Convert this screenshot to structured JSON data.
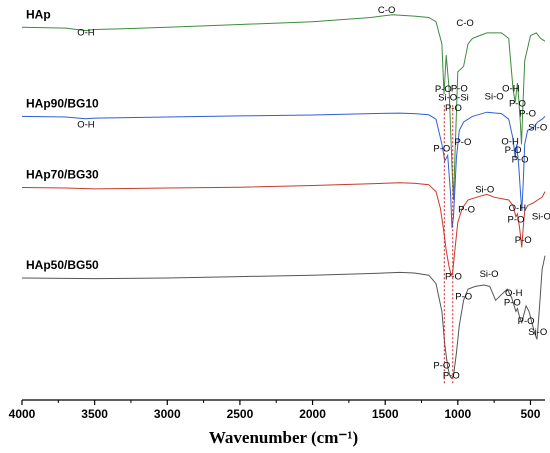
{
  "chart_data": {
    "type": "line",
    "xlabel": "Wavenumber (cm⁻¹)",
    "xlim": [
      4000,
      400
    ],
    "x_reversed": true,
    "x_ticks": [
      4000,
      3500,
      3000,
      2500,
      2000,
      1500,
      1000,
      500
    ],
    "grid": false,
    "ylabel": "",
    "series": [
      {
        "name": "HAp",
        "color": "#3c8c3c",
        "baseline": 0.92,
        "points": [
          [
            4000,
            0.92
          ],
          [
            3700,
            0.917
          ],
          [
            3560,
            0.908
          ],
          [
            3500,
            0.912
          ],
          [
            3300,
            0.915
          ],
          [
            3000,
            0.92
          ],
          [
            2500,
            0.93
          ],
          [
            2000,
            0.94
          ],
          [
            1600,
            0.955
          ],
          [
            1450,
            0.965
          ],
          [
            1300,
            0.96
          ],
          [
            1200,
            0.955
          ],
          [
            1150,
            0.94
          ],
          [
            1110,
            0.86
          ],
          [
            1095,
            0.68
          ],
          [
            1080,
            0.82
          ],
          [
            1060,
            0.7
          ],
          [
            1040,
            0.42
          ],
          [
            1030,
            0.3
          ],
          [
            1020,
            0.45
          ],
          [
            1000,
            0.76
          ],
          [
            960,
            0.78
          ],
          [
            930,
            0.86
          ],
          [
            900,
            0.88
          ],
          [
            850,
            0.89
          ],
          [
            800,
            0.9
          ],
          [
            700,
            0.9
          ],
          [
            650,
            0.88
          ],
          [
            620,
            0.7
          ],
          [
            605,
            0.65
          ],
          [
            590,
            0.72
          ],
          [
            580,
            0.66
          ],
          [
            570,
            0.58
          ],
          [
            562,
            0.5
          ],
          [
            555,
            0.6
          ],
          [
            540,
            0.8
          ],
          [
            500,
            0.89
          ],
          [
            460,
            0.9
          ],
          [
            430,
            0.88
          ],
          [
            400,
            0.87
          ]
        ]
      },
      {
        "name": "HAp90/BG10",
        "color": "#2f5fd6",
        "baseline": 0.6,
        "points": [
          [
            4000,
            0.6
          ],
          [
            3700,
            0.598
          ],
          [
            3560,
            0.592
          ],
          [
            3500,
            0.594
          ],
          [
            3000,
            0.598
          ],
          [
            2500,
            0.602
          ],
          [
            2000,
            0.605
          ],
          [
            1600,
            0.61
          ],
          [
            1400,
            0.612
          ],
          [
            1300,
            0.61
          ],
          [
            1200,
            0.606
          ],
          [
            1150,
            0.59
          ],
          [
            1110,
            0.5
          ],
          [
            1090,
            0.44
          ],
          [
            1070,
            0.46
          ],
          [
            1050,
            0.32
          ],
          [
            1040,
            0.2
          ],
          [
            1030,
            0.24
          ],
          [
            1010,
            0.45
          ],
          [
            990,
            0.55
          ],
          [
            960,
            0.58
          ],
          [
            900,
            0.6
          ],
          [
            800,
            0.615
          ],
          [
            700,
            0.61
          ],
          [
            650,
            0.59
          ],
          [
            620,
            0.52
          ],
          [
            605,
            0.45
          ],
          [
            595,
            0.5
          ],
          [
            580,
            0.42
          ],
          [
            568,
            0.32
          ],
          [
            560,
            0.26
          ],
          [
            550,
            0.36
          ],
          [
            540,
            0.5
          ],
          [
            520,
            0.55
          ],
          [
            480,
            0.56
          ],
          [
            450,
            0.58
          ],
          [
            420,
            0.59
          ],
          [
            400,
            0.6
          ]
        ]
      },
      {
        "name": "HAp70/BG30",
        "color": "#c9382d",
        "baseline": 0.345,
        "points": [
          [
            4000,
            0.345
          ],
          [
            3700,
            0.343
          ],
          [
            3500,
            0.34
          ],
          [
            3000,
            0.343
          ],
          [
            2500,
            0.346
          ],
          [
            2000,
            0.352
          ],
          [
            1600,
            0.358
          ],
          [
            1400,
            0.362
          ],
          [
            1300,
            0.36
          ],
          [
            1200,
            0.355
          ],
          [
            1150,
            0.33
          ],
          [
            1120,
            0.27
          ],
          [
            1100,
            0.2
          ],
          [
            1080,
            0.12
          ],
          [
            1060,
            0.06
          ],
          [
            1045,
            0.03
          ],
          [
            1035,
            0.04
          ],
          [
            1020,
            0.12
          ],
          [
            1000,
            0.22
          ],
          [
            970,
            0.27
          ],
          [
            930,
            0.3
          ],
          [
            870,
            0.31
          ],
          [
            800,
            0.32
          ],
          [
            750,
            0.31
          ],
          [
            700,
            0.305
          ],
          [
            650,
            0.3
          ],
          [
            620,
            0.28
          ],
          [
            600,
            0.24
          ],
          [
            590,
            0.25
          ],
          [
            575,
            0.2
          ],
          [
            560,
            0.13
          ],
          [
            550,
            0.2
          ],
          [
            540,
            0.26
          ],
          [
            520,
            0.28
          ],
          [
            480,
            0.29
          ],
          [
            450,
            0.3
          ],
          [
            420,
            0.31
          ],
          [
            400,
            0.33
          ]
        ]
      },
      {
        "name": "HAp50/BG50",
        "color": "#555555",
        "baseline": 0.02,
        "points": [
          [
            4000,
            0.02
          ],
          [
            3500,
            0.018
          ],
          [
            3000,
            0.02
          ],
          [
            2500,
            0.025
          ],
          [
            2000,
            0.03
          ],
          [
            1600,
            0.036
          ],
          [
            1400,
            0.04
          ],
          [
            1300,
            0.038
          ],
          [
            1200,
            0.03
          ],
          [
            1150,
            0.0
          ],
          [
            1110,
            -0.1
          ],
          [
            1090,
            -0.22
          ],
          [
            1070,
            -0.3
          ],
          [
            1055,
            -0.33
          ],
          [
            1045,
            -0.34
          ],
          [
            1030,
            -0.33
          ],
          [
            1010,
            -0.25
          ],
          [
            990,
            -0.15
          ],
          [
            960,
            -0.06
          ],
          [
            930,
            -0.02
          ],
          [
            880,
            -0.01
          ],
          [
            820,
            -0.005
          ],
          [
            780,
            -0.01
          ],
          [
            740,
            -0.06
          ],
          [
            700,
            -0.04
          ],
          [
            660,
            -0.02
          ],
          [
            630,
            -0.05
          ],
          [
            600,
            -0.1
          ],
          [
            590,
            -0.09
          ],
          [
            575,
            -0.12
          ],
          [
            560,
            -0.14
          ],
          [
            550,
            -0.12
          ],
          [
            530,
            -0.08
          ],
          [
            510,
            -0.1
          ],
          [
            490,
            -0.14
          ],
          [
            470,
            -0.18
          ],
          [
            455,
            -0.2
          ],
          [
            440,
            -0.1
          ],
          [
            420,
            0.05
          ],
          [
            400,
            0.1
          ]
        ]
      }
    ],
    "annotations": [
      {
        "text": "C-O",
        "x": 1490,
        "y": 0.972,
        "color": "#000000"
      },
      {
        "text": "O-H",
        "x": 3560,
        "y": 0.89,
        "color": "#000000"
      },
      {
        "text": "C-O",
        "x": 950,
        "y": 0.925,
        "color": "#000000"
      },
      {
        "text": "P-O",
        "x": 1100,
        "y": 0.688,
        "color": "#000000"
      },
      {
        "text": "P-O",
        "x": 990,
        "y": 0.69,
        "color": "#000000"
      },
      {
        "text": "O-H",
        "x": 635,
        "y": 0.69,
        "color": "#000000"
      },
      {
        "text": "P-O",
        "x": 1030,
        "y": 0.62,
        "color": "#000000"
      },
      {
        "text": "P-O",
        "x": 590,
        "y": 0.635,
        "color": "#000000"
      },
      {
        "text": "P-O",
        "x": 520,
        "y": 0.6,
        "color": "#000000"
      },
      {
        "text": "Si-O-Si",
        "x": 1030,
        "y": 0.658,
        "color": "#d21f1f"
      },
      {
        "text": "Si-O",
        "x": 750,
        "y": 0.66,
        "color": "#000000"
      },
      {
        "text": "O-H",
        "x": 3560,
        "y": 0.56,
        "color": "#000000"
      },
      {
        "text": "Si-O",
        "x": 450,
        "y": 0.55,
        "color": "#000000"
      },
      {
        "text": "P-O",
        "x": 1110,
        "y": 0.475,
        "color": "#000000"
      },
      {
        "text": "P-O",
        "x": 965,
        "y": 0.497,
        "color": "#000000"
      },
      {
        "text": "O-H",
        "x": 640,
        "y": 0.5,
        "color": "#000000"
      },
      {
        "text": "P-O",
        "x": 620,
        "y": 0.468,
        "color": "#000000"
      },
      {
        "text": "P-O",
        "x": 572,
        "y": 0.435,
        "color": "#000000"
      },
      {
        "text": "Si-O",
        "x": 815,
        "y": 0.327,
        "color": "#000000"
      },
      {
        "text": "P-O",
        "x": 940,
        "y": 0.255,
        "color": "#000000"
      },
      {
        "text": "O-H",
        "x": 590,
        "y": 0.26,
        "color": "#000000"
      },
      {
        "text": "P-O",
        "x": 600,
        "y": 0.22,
        "color": "#000000"
      },
      {
        "text": "Si-O",
        "x": 425,
        "y": 0.23,
        "color": "#000000"
      },
      {
        "text": "P-O",
        "x": 550,
        "y": 0.145,
        "color": "#000000"
      },
      {
        "text": "P-O",
        "x": 1030,
        "y": 0.014,
        "color": "#000000"
      },
      {
        "text": "Si-O",
        "x": 785,
        "y": 0.023,
        "color": "#000000"
      },
      {
        "text": "P-O",
        "x": 960,
        "y": -0.058,
        "color": "#000000"
      },
      {
        "text": "O-H",
        "x": 615,
        "y": -0.045,
        "color": "#000000"
      },
      {
        "text": "P-O",
        "x": 625,
        "y": -0.078,
        "color": "#000000"
      },
      {
        "text": "P-O",
        "x": 530,
        "y": -0.145,
        "color": "#000000"
      },
      {
        "text": "Si-O",
        "x": 450,
        "y": -0.185,
        "color": "#000000"
      },
      {
        "text": "P-O",
        "x": 1110,
        "y": -0.305,
        "color": "#000000"
      },
      {
        "text": "P-O",
        "x": 1045,
        "y": -0.34,
        "color": "#000000"
      }
    ],
    "reference_lines": [
      {
        "x": 1093,
        "color": "#d21f1f",
        "style": "dashed"
      },
      {
        "x": 1035,
        "color": "#d21f1f",
        "style": "dashed"
      }
    ]
  }
}
